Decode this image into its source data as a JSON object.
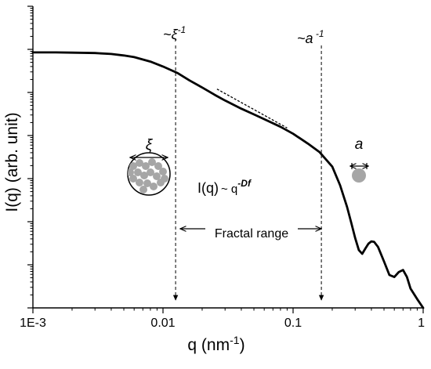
{
  "chart_data": {
    "type": "line",
    "xlabel_main": "q (nm",
    "xlabel_sup": "-1",
    "xlabel_end": ")",
    "ylabel": "I(q) (arb. unit)",
    "x_scale": "log",
    "y_scale": "log",
    "xlim": [
      0.001,
      1
    ],
    "ylim": [
      1e-07,
      1
    ],
    "x_tick_labels": [
      {
        "value": 0.001,
        "label": "1E-3"
      },
      {
        "value": 0.01,
        "label": "0.01"
      },
      {
        "value": 0.1,
        "label": "0.1"
      },
      {
        "value": 1,
        "label": "1"
      }
    ],
    "y_ticks": [
      1e-07,
      1e-06,
      1e-05,
      0.0001,
      0.001,
      0.01,
      0.1,
      1
    ],
    "y_tick_labels_shown": false,
    "grid": false,
    "series": [
      {
        "color": "#000000",
        "x": [
          0.001,
          0.0015,
          0.002,
          0.003,
          0.004,
          0.005,
          0.006,
          0.008,
          0.01,
          0.013,
          0.016,
          0.02,
          0.025,
          0.03,
          0.04,
          0.05,
          0.06,
          0.08,
          0.1,
          0.13,
          0.16,
          0.2,
          0.23,
          0.26,
          0.28,
          0.3,
          0.32,
          0.34,
          0.36,
          0.38,
          0.4,
          0.42,
          0.45,
          0.5,
          0.55,
          0.6,
          0.65,
          0.7,
          0.75,
          0.8,
          0.9,
          1.0
        ],
        "y": [
          0.085,
          0.085,
          0.084,
          0.082,
          0.078,
          0.072,
          0.066,
          0.052,
          0.04,
          0.028,
          0.019,
          0.013,
          0.0088,
          0.0065,
          0.0042,
          0.0031,
          0.0024,
          0.0016,
          0.0011,
          0.00065,
          0.00041,
          0.00019,
          7e-05,
          2.2e-05,
          9.5e-06,
          4.2e-06,
          2.2e-06,
          1.8e-06,
          2.4e-06,
          3.1e-06,
          3.5e-06,
          3.4e-06,
          2.6e-06,
          1.2e-06,
          5.8e-07,
          5.2e-07,
          6.8e-07,
          7.6e-07,
          5.2e-07,
          2.8e-07,
          1.6e-07,
          1e-07
        ]
      }
    ],
    "reference_line": {
      "style": "dashed",
      "x": [
        0.026,
        0.09
      ],
      "y": [
        0.012,
        0.0015
      ]
    },
    "vertical_markers": [
      {
        "x": 0.0125,
        "label": "~ξ",
        "sup": "-1"
      },
      {
        "x": 0.165,
        "label": "~a",
        "sup": " -1"
      }
    ],
    "annotations": {
      "power_law_main": "I(q)",
      "power_law_tilde": "~ q",
      "power_law_sup": "-Df",
      "fractal_range": "Fractal range",
      "xi_label": "ξ",
      "a_label": "a"
    },
    "colors": {
      "curve": "#000000",
      "particle_fill": "#a6a6a6",
      "aggregate_fill": "#a6a6a6"
    }
  }
}
